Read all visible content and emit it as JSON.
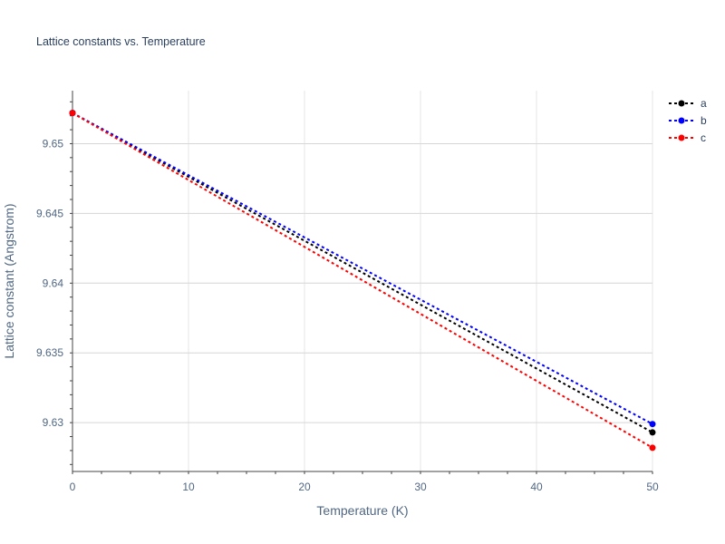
{
  "chart_data": {
    "type": "line",
    "title": "Lattice constants vs. Temperature",
    "xlabel": "Temperature (K)",
    "ylabel": "Lattice constant (Angstrom)",
    "xlim": [
      0,
      50
    ],
    "ylim": [
      9.6265,
      9.6538
    ],
    "x_ticks": [
      0,
      10,
      20,
      30,
      40,
      50
    ],
    "y_ticks": [
      9.63,
      9.635,
      9.64,
      9.645,
      9.65
    ],
    "x_tick_labels": [
      "0",
      "10",
      "20",
      "30",
      "40",
      "50"
    ],
    "y_tick_labels": [
      "9.63",
      "9.635",
      "9.64",
      "9.645",
      "9.65"
    ],
    "grid": true,
    "legend_position": "top-right",
    "x": [
      0,
      50
    ],
    "series": [
      {
        "name": "a",
        "color": "#000000",
        "values": [
          9.6522,
          9.6293
        ]
      },
      {
        "name": "b",
        "color": "#0000ff",
        "values": [
          9.6522,
          9.6299
        ]
      },
      {
        "name": "c",
        "color": "#ff0000",
        "values": [
          9.6522,
          9.6282
        ]
      }
    ]
  }
}
